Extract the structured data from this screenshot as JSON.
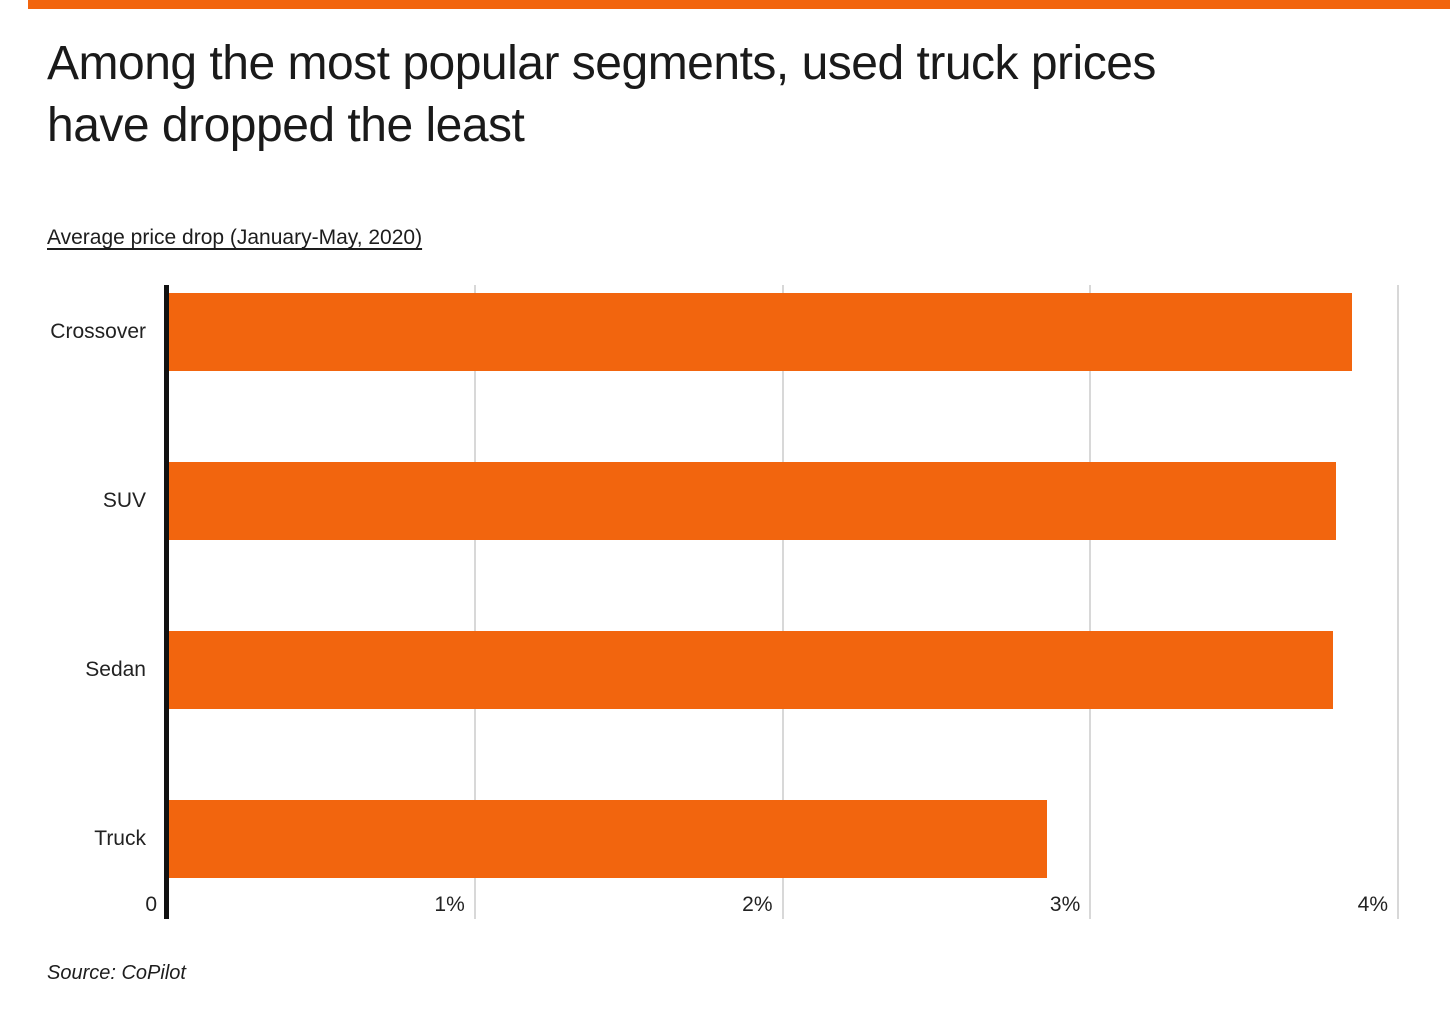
{
  "page": {
    "background": "#ffffff",
    "accent_color": "#F2650E"
  },
  "header": {
    "title": "Among the most popular segments, used truck prices have dropped the least",
    "title_lines": [
      "Among the most popular segments, used truck prices",
      "have dropped the least"
    ],
    "subtitle": "Average price drop  (January-May, 2020)"
  },
  "footer": {
    "source": "Source: CoPilot"
  },
  "chart_data": {
    "type": "bar",
    "orientation": "horizontal",
    "title": "Among the most popular segments, used truck prices have dropped the least",
    "subtitle": "Average price drop (January-May, 2020)",
    "categories": [
      "Crossover",
      "SUV",
      "Sedan",
      "Truck"
    ],
    "values": [
      3.85,
      3.8,
      3.79,
      2.86
    ],
    "value_unit": "%",
    "xlabel": "",
    "ylabel": "",
    "xlim": [
      0,
      4
    ],
    "xticks": [
      {
        "value": 0,
        "label": "0"
      },
      {
        "value": 1,
        "label": "1%"
      },
      {
        "value": 2,
        "label": "2%"
      },
      {
        "value": 3,
        "label": "3%"
      },
      {
        "value": 4,
        "label": "4%"
      }
    ],
    "grid": true,
    "legend": false,
    "bar_color": "#F2650E",
    "gridline_color": "#d8d8d8",
    "axis_color": "#111111",
    "source": "Source: CoPilot"
  }
}
